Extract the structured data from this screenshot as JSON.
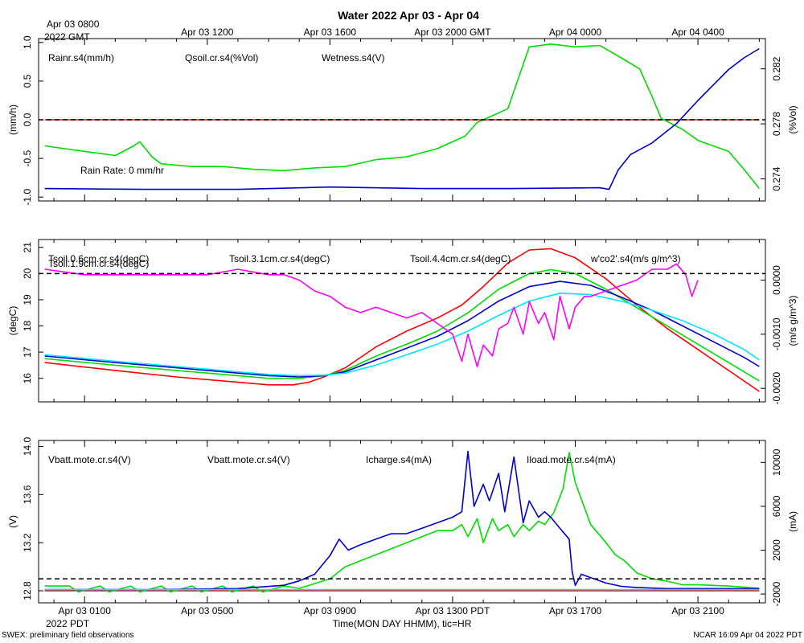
{
  "title": "Water 2022 Apr 03 - Apr 04",
  "top_axis": {
    "first_label_line1": "Apr 03 0800",
    "first_label_line2": "2022 GMT",
    "labels": [
      "Apr 03 1200",
      "Apr 03 1600",
      "Apr 03 2000 GMT",
      "Apr 04 0000",
      "Apr 04 0400"
    ]
  },
  "bottom_axis": {
    "labels": [
      "Apr 03 0100",
      "Apr 03 0500",
      "Apr 03 0900",
      "Apr 03 1300 PDT",
      "Apr 03 1700",
      "Apr 03 2100"
    ],
    "year_label": "2022 PDT",
    "xlabel": "Time(MON DAY HHMM), tic=HR"
  },
  "footer": {
    "left": "SWEX: preliminary field observations",
    "right": "NCAR 16:09 Apr 04 2022 PDT"
  },
  "colors": {
    "red": "#ff0000",
    "green": "#00dd00",
    "blue": "#0000cc",
    "cyan": "#00e5ff",
    "magenta": "#ff00ff"
  },
  "chart_data": [
    {
      "type": "line",
      "x_unit": "hours since Apr 03 0000 PDT",
      "xlim": [
        -0.5,
        23.2
      ],
      "ylabel_left": "(mm/h)",
      "ylim_left": [
        -1.05,
        1.05
      ],
      "yticks_left": [
        "1.0",
        "0.5",
        "0.0",
        "-0.5",
        "-1.0"
      ],
      "ylabel_right": "(%Vol)",
      "ylim_right": [
        0.2724,
        0.2842
      ],
      "yticks_right": [
        "0.282",
        "0.278",
        "0.274"
      ],
      "reference_line": {
        "axis": "left",
        "y": 0.0,
        "style": "dashed"
      },
      "annotation": "Rain Rate: 0 mm/hr",
      "series": [
        {
          "name": "Rainr.s4(mm/h)",
          "color": "red",
          "axis": "left",
          "x": [
            -0.3,
            23
          ],
          "y": [
            0,
            0
          ]
        },
        {
          "name": "Qsoil.cr.s4(%Vol)",
          "color": "green",
          "axis": "right",
          "x": [
            -0.3,
            1,
            2,
            2.6,
            2.8,
            3.2,
            3.5,
            4.5,
            5.5,
            6.5,
            7.5,
            8.5,
            9.5,
            10.5,
            11.5,
            12.5,
            13.0,
            13.4,
            13.8,
            14.3,
            14.8,
            15.5,
            16.2,
            17,
            17.8,
            18.5,
            19.1,
            19.5,
            19.8,
            20.5,
            21,
            21.5,
            22,
            22.5,
            23
          ],
          "y": [
            0.2764,
            0.276,
            0.2757,
            0.2764,
            0.2767,
            0.2756,
            0.2751,
            0.2749,
            0.2749,
            0.2747,
            0.2746,
            0.2748,
            0.2749,
            0.2754,
            0.2756,
            0.2762,
            0.2767,
            0.2771,
            0.2781,
            0.2786,
            0.2791,
            0.2836,
            0.2838,
            0.2836,
            0.2837,
            0.2828,
            0.282,
            0.28,
            0.2784,
            0.2776,
            0.2768,
            0.2764,
            0.276,
            0.2747,
            0.2733
          ]
        },
        {
          "name": "Wetness.s4(V)",
          "color": "blue",
          "axis": "left",
          "x": [
            -0.3,
            3,
            6,
            9,
            12,
            15,
            17.8,
            18.1,
            18.4,
            18.8,
            19.5,
            20.3,
            21,
            21.5,
            22,
            22.5,
            23
          ],
          "y": [
            -0.89,
            -0.9,
            -0.9,
            -0.87,
            -0.89,
            -0.89,
            -0.88,
            -0.9,
            -0.65,
            -0.45,
            -0.3,
            -0.05,
            0.25,
            0.45,
            0.65,
            0.8,
            0.92
          ]
        }
      ]
    },
    {
      "type": "line",
      "x_unit": "hours since Apr 03 0000 PDT",
      "xlim": [
        -0.5,
        23.2
      ],
      "ylabel_left": "(degC)",
      "ylim_left": [
        15.1,
        21.3
      ],
      "yticks_left": [
        "21",
        "20",
        "19",
        "18",
        "17",
        "16"
      ],
      "ylabel_right": "(m/s g/m^3)",
      "ylim_right": [
        -0.00225,
        0.00075
      ],
      "yticks_right": [
        "0.0000",
        "-0.0010",
        "-0.0020"
      ],
      "reference_line": {
        "axis": "left",
        "y": 20.0,
        "style": "dashed"
      },
      "series": [
        {
          "name": "Tsoil.0.6cm.cr.s4(degC)",
          "color": "red",
          "axis": "left",
          "x": [
            -0.3,
            2,
            4,
            6,
            7,
            7.8,
            8.3,
            8.8,
            9.5,
            10.5,
            11.5,
            12.5,
            13.3,
            14,
            14.8,
            15.5,
            16.2,
            17,
            18,
            19,
            20,
            21,
            22,
            23
          ],
          "y": [
            16.6,
            16.3,
            16.05,
            15.85,
            15.75,
            15.75,
            15.85,
            16.05,
            16.4,
            17.2,
            17.8,
            18.3,
            18.8,
            19.5,
            20.4,
            20.9,
            20.95,
            20.6,
            19.8,
            18.8,
            17.9,
            17.1,
            16.3,
            15.5
          ]
        },
        {
          "name": "Tsoil.1.9cm.cr.s4(degC)",
          "color": "green",
          "axis": "left",
          "x": [
            -0.3,
            2,
            4,
            6,
            7,
            8,
            8.8,
            9.5,
            10.5,
            11.5,
            12.5,
            13.5,
            14.5,
            15.5,
            16.2,
            17,
            18,
            19,
            20,
            21,
            22,
            23
          ],
          "y": [
            16.75,
            16.5,
            16.3,
            16.1,
            16.0,
            16.0,
            16.1,
            16.3,
            16.85,
            17.3,
            17.8,
            18.5,
            19.4,
            20.0,
            20.15,
            20.0,
            19.4,
            18.7,
            18.0,
            17.3,
            16.6,
            15.9
          ]
        },
        {
          "name": "Tsoil.3.1cm.cr.s4(degC)",
          "color": "blue",
          "axis": "left",
          "x": [
            -0.3,
            2,
            4,
            6,
            7,
            8,
            8.8,
            9.5,
            10.5,
            11.5,
            12.5,
            13.5,
            14.5,
            15.5,
            16.5,
            17.5,
            18.5,
            19.5,
            20.5,
            21.5,
            22.5,
            23
          ],
          "y": [
            16.85,
            16.6,
            16.4,
            16.2,
            16.1,
            16.05,
            16.1,
            16.25,
            16.7,
            17.15,
            17.6,
            18.2,
            18.95,
            19.5,
            19.7,
            19.55,
            19.1,
            18.6,
            18.0,
            17.4,
            16.8,
            16.45
          ]
        },
        {
          "name": "Tsoil.4.4cm.cr.s4(degC)",
          "color": "cyan",
          "axis": "left",
          "x": [
            -0.3,
            2,
            4,
            6,
            7,
            8,
            8.8,
            9.5,
            10.5,
            11.5,
            12.5,
            13.5,
            14.5,
            15.5,
            16.5,
            17.5,
            18.5,
            19.5,
            20.5,
            21.5,
            22.5,
            23
          ],
          "y": [
            16.9,
            16.65,
            16.45,
            16.25,
            16.15,
            16.1,
            16.12,
            16.2,
            16.5,
            16.9,
            17.3,
            17.8,
            18.4,
            18.95,
            19.25,
            19.2,
            18.95,
            18.6,
            18.2,
            17.7,
            17.1,
            16.7
          ]
        },
        {
          "name": "w'co2'.s4(m/s g/m^3)",
          "color": "magenta",
          "axis": "right",
          "x": [
            -0.3,
            1,
            2,
            3,
            4,
            5,
            6,
            7,
            7.5,
            8,
            8.5,
            9,
            9.5,
            10,
            10.5,
            11,
            11.5,
            12,
            12.5,
            13,
            13.3,
            13.5,
            13.8,
            14,
            14.3,
            14.5,
            14.8,
            15,
            15.3,
            15.5,
            15.8,
            16,
            16.3,
            16.5,
            16.8,
            17,
            17.3,
            17.5,
            18,
            18.5,
            19,
            19.5,
            20,
            20.3,
            20.6,
            20.8,
            21
          ],
          "y": [
            0.0002,
            0.0001,
            0.0001,
            0.0001,
            0.0001,
            0.0001,
            0.0002,
            0.0001,
            0.0001,
            0.0,
            -0.0002,
            -0.0003,
            -0.0005,
            -0.0006,
            -0.0005,
            -0.0006,
            -0.0007,
            -0.0006,
            -0.0008,
            -0.001,
            -0.0015,
            -0.001,
            -0.0016,
            -0.0012,
            -0.0014,
            -0.0009,
            -0.0008,
            -0.0005,
            -0.001,
            -0.0004,
            -0.0008,
            -0.0006,
            -0.0011,
            -0.0003,
            -0.0009,
            -0.0005,
            -0.0003,
            -0.0003,
            -0.0002,
            -0.0001,
            0.0,
            0.0002,
            0.0002,
            0.0003,
            0.0001,
            -0.0003,
            0.0
          ]
        }
      ]
    },
    {
      "type": "line",
      "x_unit": "hours since Apr 03 0000 PDT",
      "xlim": [
        -0.5,
        23.2
      ],
      "ylabel_left": "(V)",
      "ylim_left": [
        12.7,
        14.05
      ],
      "yticks_left": [
        "14.0",
        "13.6",
        "13.2",
        "12.8"
      ],
      "ylabel_right": "(mA)",
      "ylim_right": [
        -2800,
        12000
      ],
      "yticks_right": [
        "10000",
        "6000",
        "2000",
        "-2000"
      ],
      "reference_line": {
        "axis": "left",
        "y": 12.9,
        "style": "dashed"
      },
      "series": [
        {
          "name": "Vbatt.mote.cr.s4(V)",
          "color": "red",
          "axis": "left",
          "x": [
            -0.3,
            23
          ],
          "y": [
            12.8,
            12.8
          ]
        },
        {
          "name": "Vbatt.mote.cr.s4(V)",
          "color": "green",
          "axis": "left",
          "x": [
            -0.3,
            0.5,
            0.8,
            1.5,
            1.8,
            2.5,
            2.8,
            3.5,
            3.8,
            4.5,
            4.8,
            5.5,
            5.8,
            6.5,
            6.8,
            7.5,
            8,
            8.5,
            9,
            9.5,
            10,
            10.5,
            11,
            11.5,
            12,
            12.5,
            13,
            13.3,
            13.5,
            13.8,
            14,
            14.3,
            14.5,
            14.8,
            15,
            15.3,
            15.5,
            15.8,
            16,
            16.3,
            16.6,
            16.8,
            17,
            17.5,
            18,
            18.3,
            18.6,
            19,
            19.5,
            20,
            20.5,
            21,
            22,
            23
          ],
          "y": [
            12.84,
            12.84,
            12.79,
            12.84,
            12.79,
            12.84,
            12.79,
            12.84,
            12.79,
            12.84,
            12.79,
            12.84,
            12.79,
            12.84,
            12.79,
            12.84,
            12.82,
            12.86,
            12.9,
            13.0,
            13.05,
            13.1,
            13.15,
            13.2,
            13.25,
            13.3,
            13.3,
            13.35,
            13.25,
            13.4,
            13.2,
            13.4,
            13.3,
            13.35,
            13.25,
            13.35,
            13.3,
            13.38,
            13.35,
            13.45,
            13.65,
            13.95,
            13.7,
            13.35,
            13.2,
            13.1,
            13.05,
            12.95,
            12.9,
            12.88,
            12.85,
            12.85,
            12.84,
            12.82
          ]
        },
        {
          "name": "Icharge.s4(mA)",
          "color": "blue",
          "axis": "right",
          "x": [
            -0.3,
            3,
            6,
            7.5,
            8,
            8.5,
            9,
            9.3,
            9.6,
            10,
            10.5,
            11,
            11.5,
            12,
            12.5,
            13,
            13.3,
            13.5,
            13.7,
            14,
            14.2,
            14.5,
            14.7,
            15,
            15.3,
            15.5,
            15.8,
            16,
            16.2,
            16.5,
            16.8,
            16.9,
            17,
            17.2,
            17.5,
            18,
            18.5,
            19,
            20,
            21,
            22,
            23
          ],
          "y": [
            -1600,
            -1600,
            -1500,
            -1200,
            -800,
            -200,
            1500,
            3000,
            2000,
            2500,
            3000,
            3500,
            3500,
            4000,
            4500,
            5000,
            5500,
            11000,
            6000,
            8000,
            6500,
            9000,
            5500,
            10500,
            4500,
            6500,
            5000,
            5500,
            5000,
            4000,
            3000,
            0,
            -1200,
            -200,
            -500,
            -1000,
            -1300,
            -1400,
            -1500,
            -1500,
            -1500,
            -1500
          ]
        },
        {
          "name": "Iload.mote.cr.s4(mA)",
          "color": "cyan",
          "axis": "right",
          "x": [
            -0.3,
            23
          ],
          "y": [
            -1600,
            -1600
          ]
        }
      ]
    }
  ]
}
